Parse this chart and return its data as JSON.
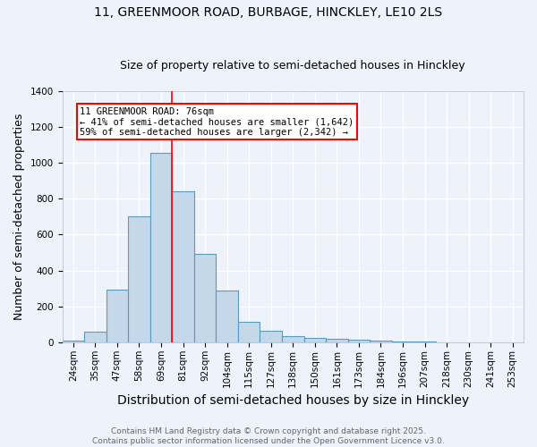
{
  "title_line1": "11, GREENMOOR ROAD, BURBAGE, HINCKLEY, LE10 2LS",
  "title_line2": "Size of property relative to semi-detached houses in Hinckley",
  "xlabel": "Distribution of semi-detached houses by size in Hinckley",
  "ylabel": "Number of semi-detached properties",
  "bins": [
    "24sqm",
    "35sqm",
    "47sqm",
    "58sqm",
    "69sqm",
    "81sqm",
    "92sqm",
    "104sqm",
    "115sqm",
    "127sqm",
    "138sqm",
    "150sqm",
    "161sqm",
    "173sqm",
    "184sqm",
    "196sqm",
    "207sqm",
    "218sqm",
    "230sqm",
    "241sqm",
    "253sqm"
  ],
  "values": [
    10,
    60,
    295,
    700,
    1055,
    840,
    490,
    290,
    115,
    65,
    35,
    22,
    20,
    12,
    8,
    4,
    3,
    1,
    0,
    0,
    0
  ],
  "bar_color": "#c5d8ea",
  "bar_edge_color": "#5a9abf",
  "vline_bin_index": 4,
  "annotation_text": "11 GREENMOOR ROAD: 76sqm\n← 41% of semi-detached houses are smaller (1,642)\n59% of semi-detached houses are larger (2,342) →",
  "annotation_box_color": "white",
  "annotation_box_edge_color": "red",
  "vline_color": "red",
  "ylim": [
    0,
    1400
  ],
  "yticks": [
    0,
    200,
    400,
    600,
    800,
    1000,
    1200,
    1400
  ],
  "background_color": "#eef2fb",
  "grid_color": "white",
  "footer_text": "Contains HM Land Registry data © Crown copyright and database right 2025.\nContains public sector information licensed under the Open Government Licence v3.0.",
  "title_fontsize": 10,
  "subtitle_fontsize": 9,
  "axis_label_fontsize": 9,
  "tick_fontsize": 7.5,
  "annotation_fontsize": 7.5,
  "footer_fontsize": 6.5
}
